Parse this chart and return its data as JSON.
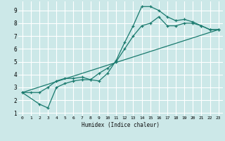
{
  "xlabel": "Humidex (Indice chaleur)",
  "bg_color": "#cce8e8",
  "grid_color": "#ffffff",
  "line_color": "#1a7a6e",
  "xlim": [
    -0.5,
    23.5
  ],
  "ylim": [
    0.8,
    9.7
  ],
  "xticks": [
    0,
    1,
    2,
    3,
    4,
    5,
    6,
    7,
    8,
    9,
    10,
    11,
    12,
    13,
    14,
    15,
    16,
    17,
    18,
    19,
    20,
    21,
    22,
    23
  ],
  "yticks": [
    1,
    2,
    3,
    4,
    5,
    6,
    7,
    8,
    9
  ],
  "curve1_x": [
    0,
    1,
    2,
    3,
    4,
    5,
    6,
    7,
    8,
    9,
    10,
    11,
    12,
    13,
    14,
    15,
    16,
    17,
    18,
    19,
    20,
    21,
    22,
    23
  ],
  "curve1_y": [
    2.6,
    2.6,
    2.6,
    3.0,
    3.5,
    3.7,
    3.7,
    3.8,
    3.6,
    3.5,
    4.1,
    5.1,
    6.5,
    7.8,
    9.3,
    9.3,
    9.0,
    8.5,
    8.2,
    8.3,
    8.1,
    7.8,
    7.5,
    7.5
  ],
  "curve2_x": [
    0,
    2,
    3,
    4,
    5,
    6,
    7,
    8,
    9,
    10,
    11,
    12,
    13,
    14,
    15,
    16,
    17,
    18,
    19,
    20,
    21,
    22,
    23
  ],
  "curve2_y": [
    2.6,
    1.7,
    1.4,
    3.0,
    3.3,
    3.5,
    3.6,
    3.6,
    4.1,
    4.5,
    5.0,
    6.0,
    7.0,
    7.8,
    8.0,
    8.5,
    7.8,
    7.8,
    8.0,
    8.0,
    7.8,
    7.5,
    7.5
  ],
  "curve3_x": [
    0,
    23
  ],
  "curve3_y": [
    2.6,
    7.5
  ]
}
